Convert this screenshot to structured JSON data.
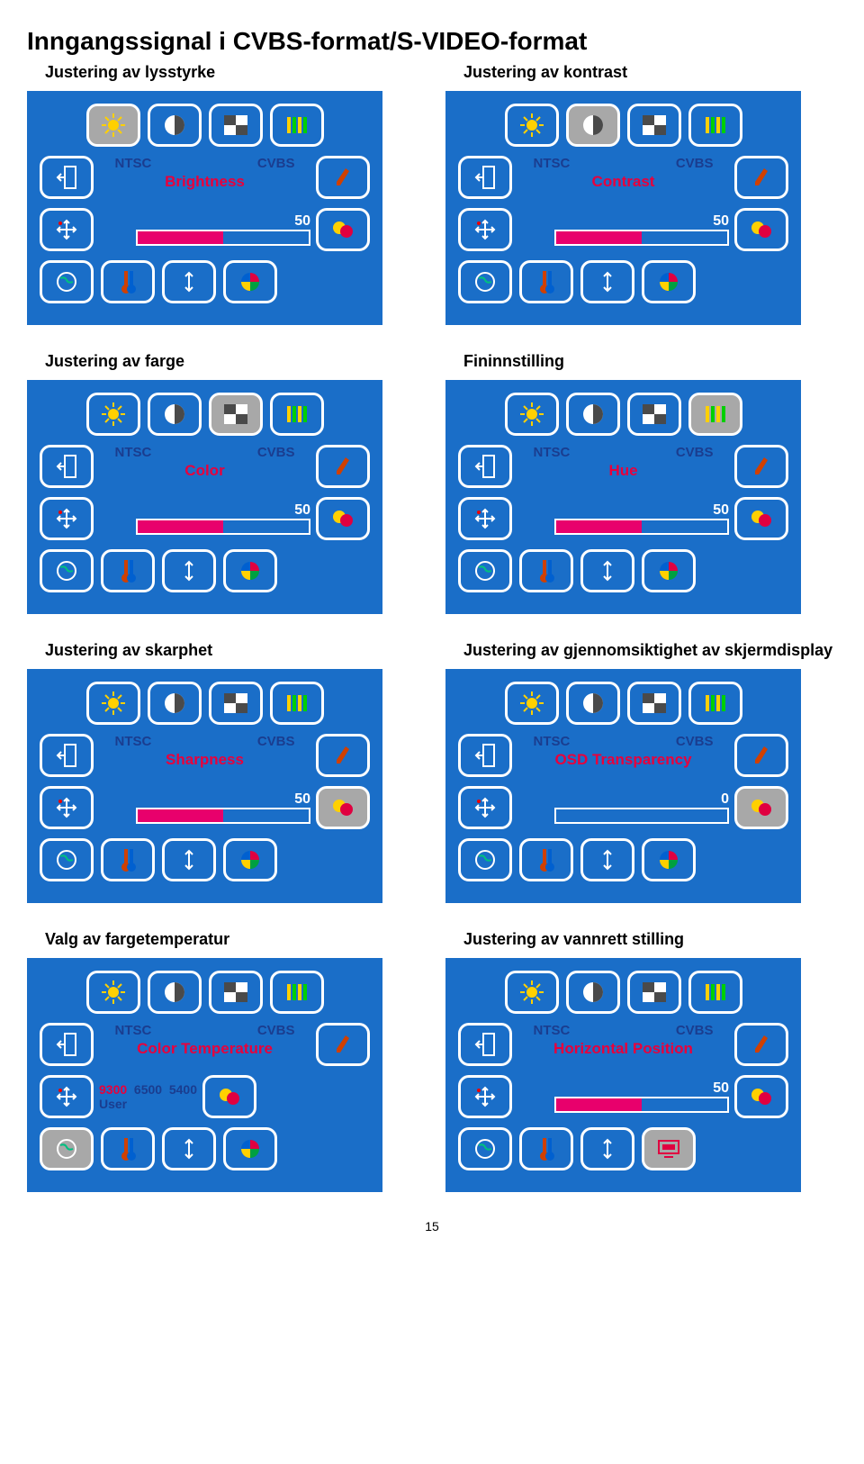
{
  "title": "Inngangssignal i CVBS-format/S-VIDEO-format",
  "pageNumber": "15",
  "labels": {
    "ntsc": "NTSC",
    "cvbs": "CVBS"
  },
  "temp": {
    "v1": "9300",
    "v2": "6500",
    "v3": "5400",
    "user": "User"
  },
  "panels": [
    {
      "captionL": "Justering av lysstyrke",
      "captionR": "Justering av kontrast",
      "paramL": "Brightness",
      "valueL": "50",
      "fillL": 50,
      "hlL": 0,
      "paramR": "Contrast",
      "valueR": "50",
      "fillR": 50,
      "hlR": 1
    },
    {
      "captionL": "Justering av farge",
      "captionR": "Fininnstilling",
      "paramL": "Color",
      "valueL": "50",
      "fillL": 50,
      "hlL": 2,
      "paramR": "Hue",
      "valueR": "50",
      "fillR": 50,
      "hlR": 3
    },
    {
      "captionL": "Justering av skarphet",
      "captionR": "Justering av gjennomsiktighet av skjermdisplay",
      "paramL": "Sharpness",
      "valueL": "50",
      "fillL": 50,
      "hlL": "r1",
      "paramR": "OSD Transparency",
      "valueR": "0",
      "fillR": 0,
      "hlR": "r2"
    },
    {
      "captionL": "Valg av fargetemperatur",
      "captionR": "Justering av vannrett stilling",
      "paramL": "Color Temperature",
      "valueL": "",
      "fillL": -1,
      "hlL": "b0",
      "paramR": "Horizontal Position",
      "valueR": "50",
      "fillR": 50,
      "hlR": "b3"
    }
  ],
  "colors": {
    "bg": "#1a6ec8",
    "border": "#ffffff",
    "highlight": "#a8a8a8",
    "red": "#e8003c",
    "pink": "#e8006c",
    "navy": "#1a3d8f"
  }
}
